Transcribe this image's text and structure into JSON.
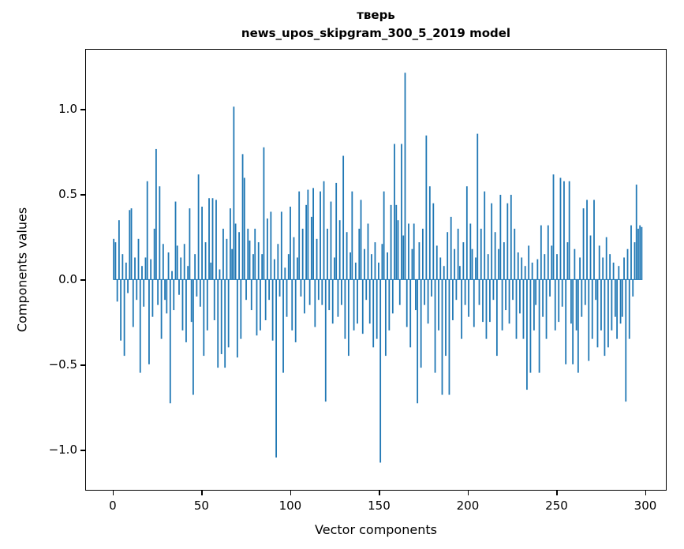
{
  "chart_data": {
    "type": "bar",
    "title": "тверь\nnews_upos_skipgram_300_5_2019 model",
    "title_line1": "тверь",
    "title_line2": "news_upos_skipgram_300_5_2019 model",
    "xlabel": "Vector components",
    "ylabel": "Components values",
    "legend": "none",
    "grid": false,
    "bar_color": "#1f77b4",
    "xlim": [
      -15.5,
      312
    ],
    "ylim": [
      -1.236,
      1.356
    ],
    "x_ticks": [
      {
        "v": 0,
        "label": "0"
      },
      {
        "v": 50,
        "label": "50"
      },
      {
        "v": 100,
        "label": "100"
      },
      {
        "v": 150,
        "label": "150"
      },
      {
        "v": 200,
        "label": "200"
      },
      {
        "v": 250,
        "label": "250"
      },
      {
        "v": 300,
        "label": "300"
      }
    ],
    "y_ticks": [
      {
        "v": -1.0,
        "label": "−1.0"
      },
      {
        "v": -0.5,
        "label": "−0.5"
      },
      {
        "v": 0.0,
        "label": "0.0"
      },
      {
        "v": 0.5,
        "label": "0.5"
      },
      {
        "v": 1.0,
        "label": "1.0"
      }
    ],
    "n_components": 300,
    "values": [
      0.24,
      0.22,
      -0.13,
      0.35,
      -0.36,
      0.15,
      -0.45,
      0.1,
      -0.08,
      0.41,
      0.42,
      -0.28,
      0.13,
      -0.12,
      0.24,
      -0.55,
      0.08,
      -0.16,
      0.13,
      0.58,
      -0.5,
      0.12,
      -0.22,
      0.3,
      0.77,
      -0.15,
      0.55,
      -0.35,
      0.21,
      -0.12,
      -0.2,
      0.16,
      -0.73,
      0.05,
      -0.18,
      0.46,
      0.2,
      -0.09,
      0.13,
      -0.3,
      0.21,
      -0.37,
      0.08,
      0.42,
      -0.25,
      -0.68,
      0.15,
      -0.1,
      0.62,
      -0.16,
      0.43,
      -0.45,
      0.22,
      -0.3,
      0.48,
      0.1,
      0.48,
      -0.24,
      0.47,
      -0.52,
      0.06,
      -0.44,
      0.3,
      -0.52,
      0.24,
      -0.4,
      0.42,
      0.18,
      1.02,
      0.33,
      -0.46,
      0.28,
      -0.35,
      0.74,
      0.6,
      -0.12,
      0.3,
      0.23,
      -0.18,
      0.15,
      0.3,
      -0.33,
      0.22,
      -0.3,
      0.15,
      0.78,
      -0.24,
      0.36,
      -0.12,
      0.4,
      -0.36,
      0.12,
      -1.05,
      0.21,
      -0.1,
      0.4,
      -0.55,
      0.07,
      -0.22,
      0.15,
      0.43,
      -0.3,
      0.25,
      -0.37,
      0.13,
      0.52,
      -0.1,
      0.3,
      -0.2,
      0.44,
      0.53,
      -0.15,
      0.37,
      0.54,
      -0.28,
      0.24,
      -0.12,
      0.52,
      -0.15,
      0.58,
      -0.72,
      0.3,
      -0.18,
      0.46,
      -0.26,
      0.13,
      0.57,
      -0.22,
      0.35,
      -0.15,
      0.73,
      -0.35,
      0.28,
      -0.45,
      0.16,
      0.52,
      -0.3,
      0.1,
      -0.26,
      0.3,
      0.47,
      -0.32,
      0.18,
      -0.12,
      0.33,
      -0.26,
      0.15,
      -0.4,
      0.22,
      -0.35,
      0.1,
      -1.08,
      0.21,
      0.52,
      -0.45,
      0.16,
      -0.3,
      0.44,
      -0.2,
      0.8,
      0.44,
      0.35,
      -0.15,
      0.8,
      0.26,
      1.22,
      -0.28,
      0.33,
      -0.4,
      0.18,
      0.33,
      -0.18,
      -0.73,
      0.22,
      -0.52,
      0.3,
      -0.15,
      0.85,
      -0.26,
      0.55,
      -0.1,
      0.45,
      -0.55,
      0.2,
      -0.3,
      0.13,
      -0.68,
      0.08,
      -0.45,
      0.28,
      -0.68,
      0.37,
      -0.24,
      0.18,
      -0.12,
      0.3,
      0.08,
      -0.35,
      0.22,
      -0.15,
      0.55,
      -0.22,
      0.33,
      0.18,
      -0.28,
      0.13,
      0.86,
      -0.15,
      0.3,
      -0.25,
      0.52,
      -0.35,
      0.15,
      -0.25,
      0.45,
      -0.12,
      0.28,
      -0.45,
      0.18,
      0.5,
      -0.3,
      0.22,
      -0.18,
      0.45,
      -0.26,
      0.5,
      -0.12,
      0.3,
      -0.35,
      0.16,
      -0.2,
      0.13,
      -0.35,
      0.08,
      -0.65,
      0.2,
      -0.55,
      0.1,
      -0.3,
      -0.15,
      0.12,
      -0.55,
      0.32,
      -0.22,
      0.15,
      -0.35,
      0.32,
      -0.1,
      0.2,
      0.62,
      -0.3,
      0.15,
      -0.25,
      0.6,
      -0.16,
      0.58,
      -0.5,
      0.22,
      0.58,
      -0.26,
      -0.5,
      0.18,
      -0.3,
      -0.55,
      0.13,
      -0.22,
      0.42,
      -0.15,
      0.47,
      -0.48,
      0.26,
      -0.35,
      0.47,
      -0.12,
      -0.4,
      0.2,
      -0.3,
      0.13,
      -0.45,
      0.25,
      -0.4,
      0.15,
      -0.3,
      0.1,
      -0.22,
      -0.35,
      0.08,
      -0.26,
      -0.22,
      0.13,
      -0.72,
      0.18,
      -0.35,
      0.32,
      -0.1,
      0.22,
      0.56,
      0.3,
      0.32,
      0.31
    ]
  }
}
